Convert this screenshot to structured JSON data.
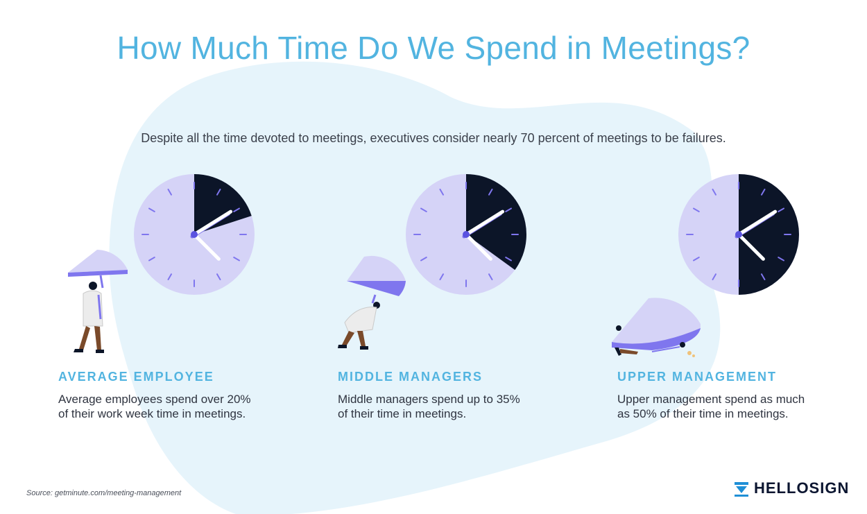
{
  "header": {
    "title": "How Much Time Do We Spend in Meetings?",
    "subtitle": "Despite all the time devoted to meetings, executives consider nearly 70 percent of meetings to be failures."
  },
  "columns": [
    {
      "title": "AVERAGE EMPLOYEE",
      "line1": "Average employees spend over 20%",
      "line2": "of their work week time in meetings.",
      "meeting_share": 0.2
    },
    {
      "title": "MIDDLE MANAGERS",
      "line1": "Middle managers spend up to 35%",
      "line2": "of their time in meetings.",
      "meeting_share": 0.35
    },
    {
      "title": "UPPER MANAGEMENT",
      "line1": "Upper management spend as much",
      "line2": "as 50% of their time in meetings.",
      "meeting_share": 0.5
    }
  ],
  "footer": {
    "source": "Source:  getminute.com/meeting-management",
    "brand": "HELLOSIGN",
    "brand_icon": "hellosign-logo-icon"
  },
  "colors": {
    "title": "#52b4e0",
    "blob": "#e6f4fb",
    "clock_face": "#d5d3f7",
    "clock_dark": "#0c1528",
    "accent": "#7f76ee",
    "hand": "#ffffff"
  }
}
